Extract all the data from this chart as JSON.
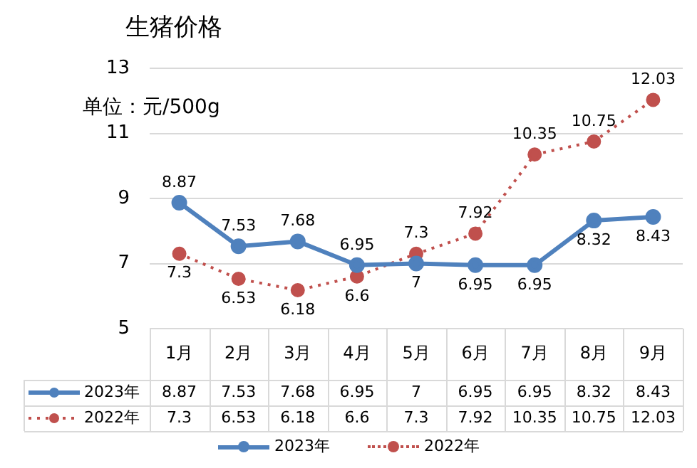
{
  "chart_data": {
    "type": "line",
    "title": "生猪价格",
    "annotations": [
      "单位：元/500g"
    ],
    "categories": [
      "1月",
      "2月",
      "3月",
      "4月",
      "5月",
      "6月",
      "7月",
      "8月",
      "9月"
    ],
    "series": [
      {
        "name": "2023年",
        "color": "#4f81bd",
        "line_style": "solid",
        "marker": "circle",
        "values": [
          8.87,
          7.53,
          7.68,
          6.95,
          7,
          6.95,
          6.95,
          8.32,
          8.43
        ],
        "value_labels": [
          "8.87",
          "7.53",
          "7.68",
          "6.95",
          "7",
          "6.95",
          "6.95",
          "8.32",
          "8.43"
        ]
      },
      {
        "name": "2022年",
        "color": "#c0504d",
        "line_style": "dotted",
        "marker": "circle",
        "values": [
          7.3,
          6.53,
          6.18,
          6.6,
          7.3,
          7.92,
          10.35,
          10.75,
          12.03
        ],
        "value_labels": [
          "7.3",
          "6.53",
          "6.18",
          "6.6",
          "7.3",
          "7.92",
          "10.35",
          "10.75",
          "12.03"
        ]
      }
    ],
    "ylim": [
      5,
      13
    ],
    "yticks": [
      5,
      7,
      9,
      11,
      13
    ],
    "grid": "y",
    "legend": "bottom"
  }
}
